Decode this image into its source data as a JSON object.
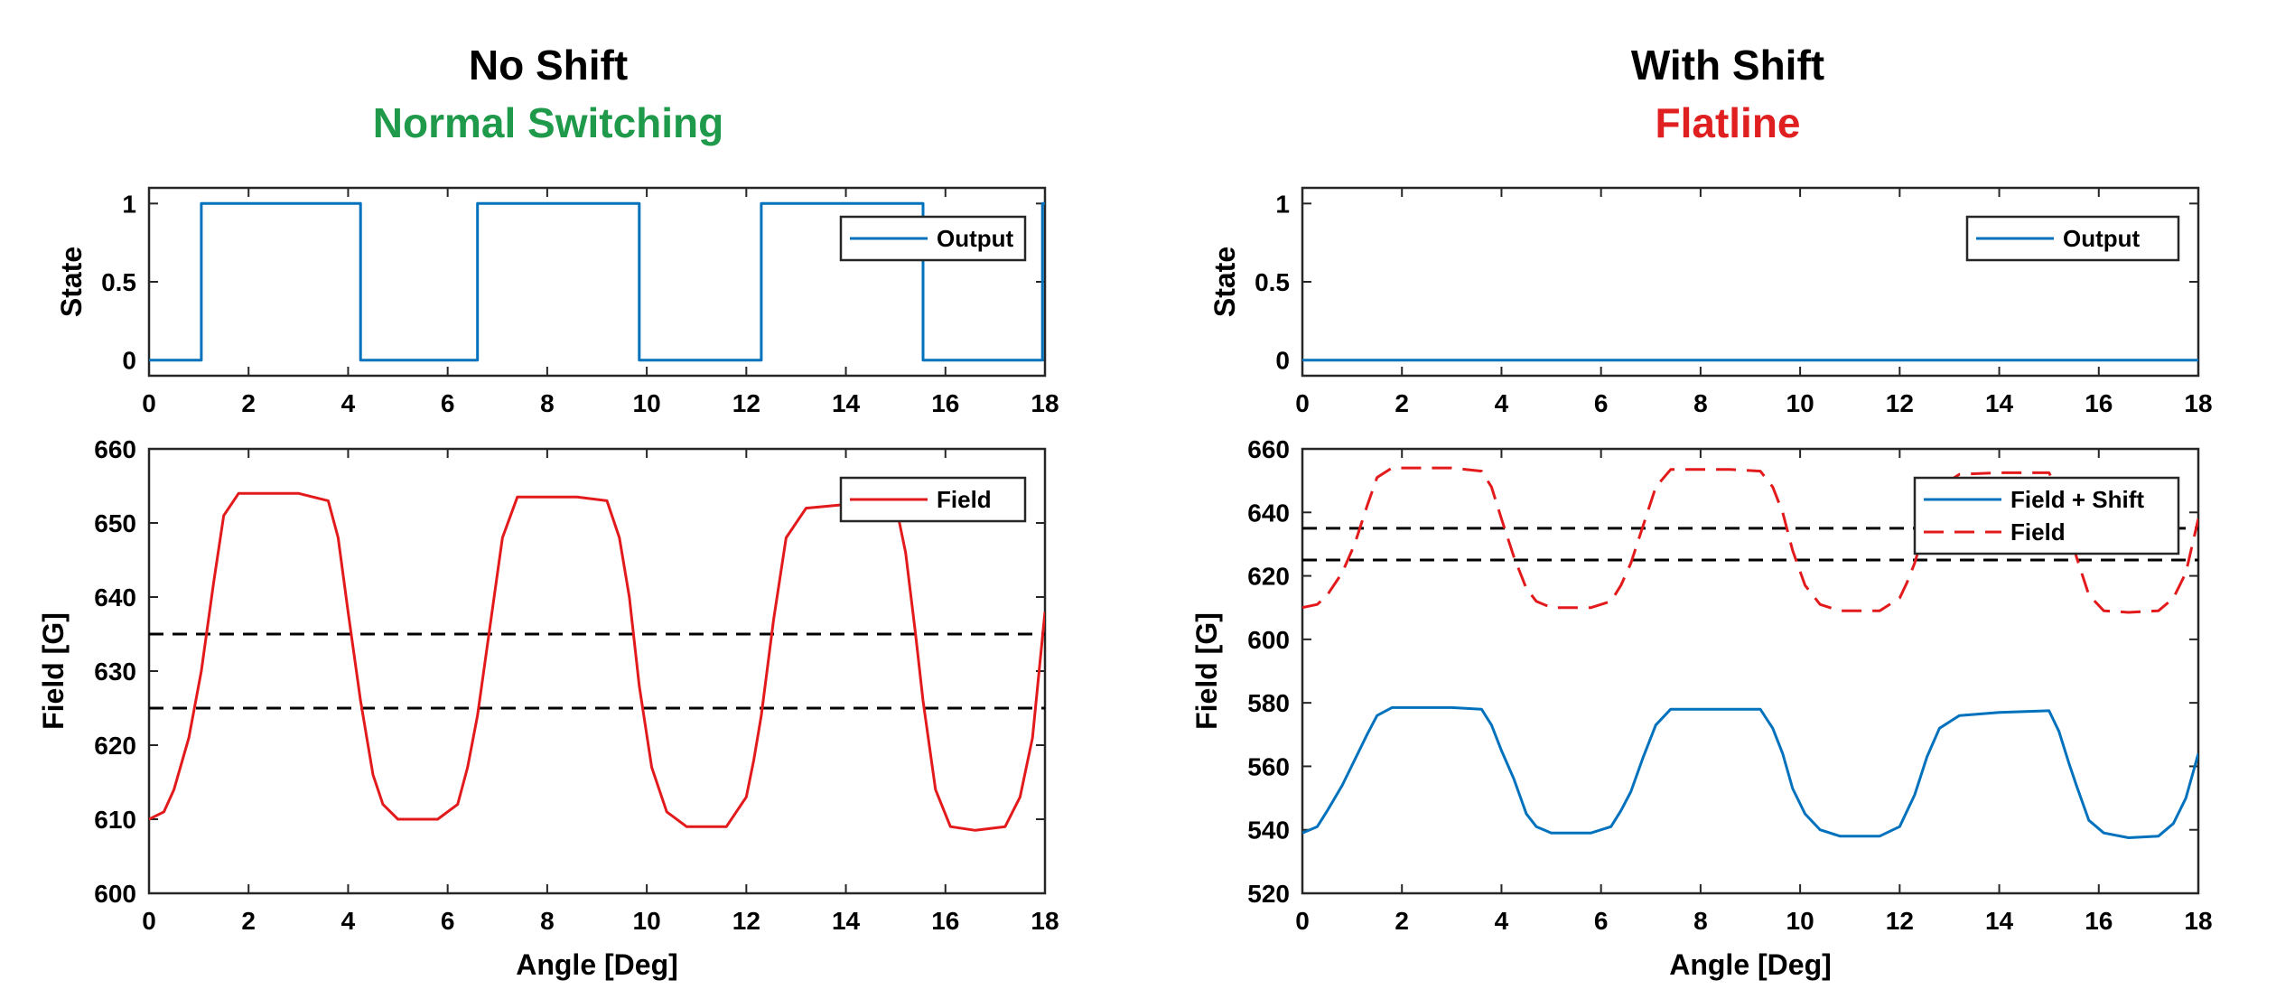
{
  "colors": {
    "output_line": "#0072BD",
    "field_line": "#E31A1C",
    "threshold_line": "#000000",
    "normal_switching": "#1E9A4A",
    "flatline": "#E02020",
    "axes": "#262626"
  },
  "panels": [
    {
      "title": "No Shift",
      "subtitle": "Normal Switching",
      "subtitle_color": "#1E9A4A"
    },
    {
      "title": "With Shift",
      "subtitle": "Flatline",
      "subtitle_color": "#E02020"
    }
  ],
  "chart_data": [
    {
      "type": "line",
      "panel": "No Shift",
      "subplot": "state",
      "xlabel": "",
      "ylabel": "State",
      "xlim": [
        0,
        18
      ],
      "ylim": [
        -0.1,
        1.1
      ],
      "xticks": [
        "0",
        "2",
        "4",
        "6",
        "8",
        "10",
        "12",
        "14",
        "16",
        "18"
      ],
      "yticks": [
        "0",
        "0.5",
        "1"
      ],
      "legend_position": "top-right",
      "series": [
        {
          "name": "Output",
          "color": "#0072BD",
          "style": "solid",
          "x": [
            0,
            1.05,
            1.05,
            4.25,
            4.25,
            6.6,
            6.6,
            9.85,
            9.85,
            12.3,
            12.3,
            15.55,
            15.55,
            17.95,
            17.95,
            18
          ],
          "y": [
            0,
            0,
            1,
            1,
            0,
            0,
            1,
            1,
            0,
            0,
            1,
            1,
            0,
            0,
            1,
            1
          ]
        }
      ]
    },
    {
      "type": "line",
      "panel": "No Shift",
      "subplot": "field",
      "xlabel": "Angle [Deg]",
      "ylabel": "Field [G]",
      "xlim": [
        0,
        18
      ],
      "ylim": [
        600,
        660
      ],
      "xticks": [
        "0",
        "2",
        "4",
        "6",
        "8",
        "10",
        "12",
        "14",
        "16",
        "18"
      ],
      "yticks": [
        "600",
        "610",
        "620",
        "630",
        "640",
        "650",
        "660"
      ],
      "legend_position": "top-right",
      "thresholds": [
        635,
        625
      ],
      "series": [
        {
          "name": "Field",
          "color": "#E31A1C",
          "style": "solid",
          "x": [
            0,
            0.3,
            0.5,
            0.8,
            1.05,
            1.3,
            1.5,
            1.8,
            3.0,
            3.6,
            3.8,
            4.0,
            4.25,
            4.5,
            4.7,
            5.0,
            5.8,
            6.2,
            6.4,
            6.6,
            6.85,
            7.1,
            7.4,
            8.6,
            9.2,
            9.45,
            9.65,
            9.85,
            10.1,
            10.4,
            10.8,
            11.6,
            12.0,
            12.15,
            12.3,
            12.55,
            12.8,
            13.2,
            14.0,
            15.0,
            15.2,
            15.4,
            15.55,
            15.8,
            16.1,
            16.6,
            17.2,
            17.5,
            17.75,
            18
          ],
          "y": [
            610,
            611,
            614,
            621,
            630,
            642,
            651,
            654,
            654,
            653,
            648,
            638,
            626,
            616,
            612,
            610,
            610,
            612,
            617,
            624,
            636,
            648,
            653.5,
            653.5,
            653,
            648,
            640,
            628,
            617,
            611,
            609,
            609,
            613,
            618,
            624,
            637,
            648,
            652,
            652.5,
            652.5,
            646,
            635,
            626,
            614,
            609,
            608.5,
            609,
            613,
            621,
            638
          ]
        }
      ]
    },
    {
      "type": "line",
      "panel": "With Shift",
      "subplot": "state",
      "xlabel": "",
      "ylabel": "State",
      "xlim": [
        0,
        18
      ],
      "ylim": [
        -0.1,
        1.1
      ],
      "xticks": [
        "0",
        "2",
        "4",
        "6",
        "8",
        "10",
        "12",
        "14",
        "16",
        "18"
      ],
      "yticks": [
        "0",
        "0.5",
        "1"
      ],
      "legend_position": "top-right",
      "series": [
        {
          "name": "Output",
          "color": "#0072BD",
          "style": "solid",
          "x": [
            0,
            18
          ],
          "y": [
            0,
            0
          ]
        }
      ]
    },
    {
      "type": "line",
      "panel": "With Shift",
      "subplot": "field",
      "xlabel": "Angle [Deg]",
      "ylabel": "Field [G]",
      "xlim": [
        0,
        18
      ],
      "ylim": [
        520,
        660
      ],
      "xticks": [
        "0",
        "2",
        "4",
        "6",
        "8",
        "10",
        "12",
        "14",
        "16",
        "18"
      ],
      "yticks": [
        "520",
        "540",
        "560",
        "580",
        "600",
        "620",
        "640",
        "660"
      ],
      "legend_position": "top-right",
      "thresholds": [
        635,
        625
      ],
      "series": [
        {
          "name": "Field + Shift",
          "color": "#0072BD",
          "style": "solid",
          "x": [
            0,
            0.3,
            0.5,
            0.8,
            1.05,
            1.3,
            1.5,
            1.8,
            3.0,
            3.6,
            3.8,
            4.0,
            4.25,
            4.5,
            4.7,
            5.0,
            5.8,
            6.2,
            6.4,
            6.6,
            6.85,
            7.1,
            7.4,
            8.6,
            9.2,
            9.45,
            9.65,
            9.85,
            10.1,
            10.4,
            10.8,
            11.6,
            12.0,
            12.15,
            12.3,
            12.55,
            12.8,
            13.2,
            14.0,
            15.0,
            15.2,
            15.4,
            15.55,
            15.8,
            16.1,
            16.6,
            17.2,
            17.5,
            17.75,
            18
          ],
          "y": [
            539,
            541,
            546,
            554,
            562,
            570,
            576,
            578.5,
            578.5,
            578,
            573,
            565,
            556,
            545,
            541,
            539,
            539,
            541,
            546,
            552,
            563,
            573,
            578,
            578,
            578,
            572,
            564,
            553,
            545,
            540,
            538,
            538,
            541,
            546,
            551,
            563,
            572,
            576,
            577,
            577.5,
            571,
            561,
            554,
            543,
            539,
            537.5,
            538,
            542,
            550,
            564
          ]
        },
        {
          "name": "Field",
          "color": "#E31A1C",
          "style": "dashed",
          "x": [
            0,
            0.3,
            0.5,
            0.8,
            1.05,
            1.3,
            1.5,
            1.8,
            3.0,
            3.6,
            3.8,
            4.0,
            4.25,
            4.5,
            4.7,
            5.0,
            5.8,
            6.2,
            6.4,
            6.6,
            6.85,
            7.1,
            7.4,
            8.6,
            9.2,
            9.45,
            9.65,
            9.85,
            10.1,
            10.4,
            10.8,
            11.6,
            12.0,
            12.15,
            12.3,
            12.55,
            12.8,
            13.2,
            14.0,
            15.0,
            15.2,
            15.4,
            15.55,
            15.8,
            16.1,
            16.6,
            17.2,
            17.5,
            17.75,
            18
          ],
          "y": [
            610,
            611,
            614,
            621,
            630,
            642,
            651,
            654,
            654,
            653,
            648,
            638,
            626,
            616,
            612,
            610,
            610,
            612,
            617,
            624,
            636,
            648,
            653.5,
            653.5,
            653,
            648,
            640,
            628,
            617,
            611,
            609,
            609,
            613,
            618,
            624,
            637,
            648,
            652,
            652.5,
            652.5,
            646,
            635,
            626,
            614,
            609,
            608.5,
            609,
            613,
            621,
            638
          ]
        }
      ]
    }
  ]
}
